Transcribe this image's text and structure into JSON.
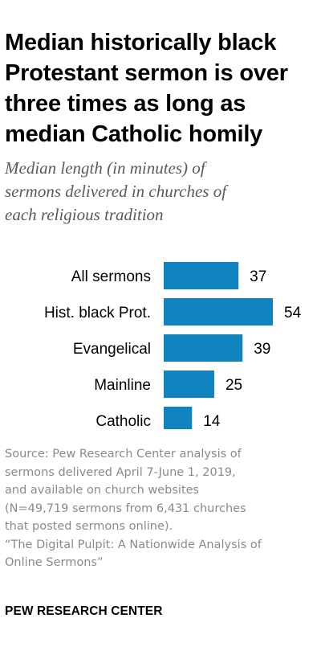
{
  "title_lines": [
    "Median historically black",
    "Protestant sermon is over",
    "three times as long as",
    "median Catholic homily"
  ],
  "subtitle_lines": [
    "Median length (in minutes) of",
    "sermons delivered in churches of",
    "each religious tradition"
  ],
  "chart_data": {
    "type": "bar",
    "orientation": "horizontal",
    "title": "Median historically black Protestant sermon is over three times as long as median Catholic homily",
    "subtitle": "Median length (in minutes) of sermons delivered in churches of each religious tradition",
    "categories": [
      "All sermons",
      "Hist. black Prot.",
      "Evangelical",
      "Mainline",
      "Catholic"
    ],
    "values": [
      37,
      54,
      39,
      25,
      14
    ],
    "xlim": [
      0,
      54
    ],
    "grid": false,
    "legend": "none",
    "data_labels": true,
    "bar_color": "#0f84bf"
  },
  "footer_lines": [
    "Source: Pew Research Center analysis of",
    "sermons delivered April 7-June 1, 2019,",
    "and available on church websites",
    "(N=49,719 sermons from 6,431 churches",
    "that posted sermons online).",
    "“The Digital Pulpit: A Nationwide Analysis of",
    "Online Sermons”"
  ],
  "brand": "PEW RESEARCH CENTER",
  "colors": {
    "bar": "#0f84bf",
    "subtitle": "#5a5a5a",
    "footer": "#8a8a8a",
    "text": "#000000"
  }
}
